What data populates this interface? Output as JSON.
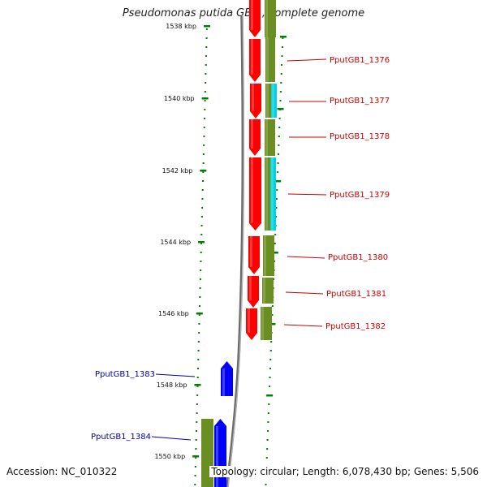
{
  "title": "Pseudomonas putida GB-1, complete genome",
  "footer": {
    "accession": "Accession: NC_010322",
    "summary": "Topology: circular; Length: 6,078,430 bp; Genes: 5,506"
  },
  "colors": {
    "red_cds": "#ff0000",
    "blue_cds": "#0000ff",
    "olive_track": "#6b8e23",
    "cyan_track": "#00d0e0",
    "tick_green": "#008000",
    "label_red": "#cc0000",
    "label_blue": "#0000aa",
    "backbone": "#808080"
  },
  "scale_ticks": [
    {
      "label": "1538 kbp"
    },
    {
      "label": "1540 kbp"
    },
    {
      "label": "1542 kbp"
    },
    {
      "label": "1544 kbp"
    },
    {
      "label": "1546 kbp"
    },
    {
      "label": "1548 kbp"
    },
    {
      "label": "1550 kbp"
    }
  ],
  "genes": [
    {
      "name": "PputGB1_1376",
      "strand": "+"
    },
    {
      "name": "PputGB1_1377",
      "strand": "+"
    },
    {
      "name": "PputGB1_1378",
      "strand": "+"
    },
    {
      "name": "PputGB1_1379",
      "strand": "+"
    },
    {
      "name": "PputGB1_1380",
      "strand": "+"
    },
    {
      "name": "PputGB1_1381",
      "strand": "+"
    },
    {
      "name": "PputGB1_1382",
      "strand": "+"
    },
    {
      "name": "PputGB1_1383",
      "strand": "-"
    },
    {
      "name": "PputGB1_1384",
      "strand": "-"
    }
  ]
}
